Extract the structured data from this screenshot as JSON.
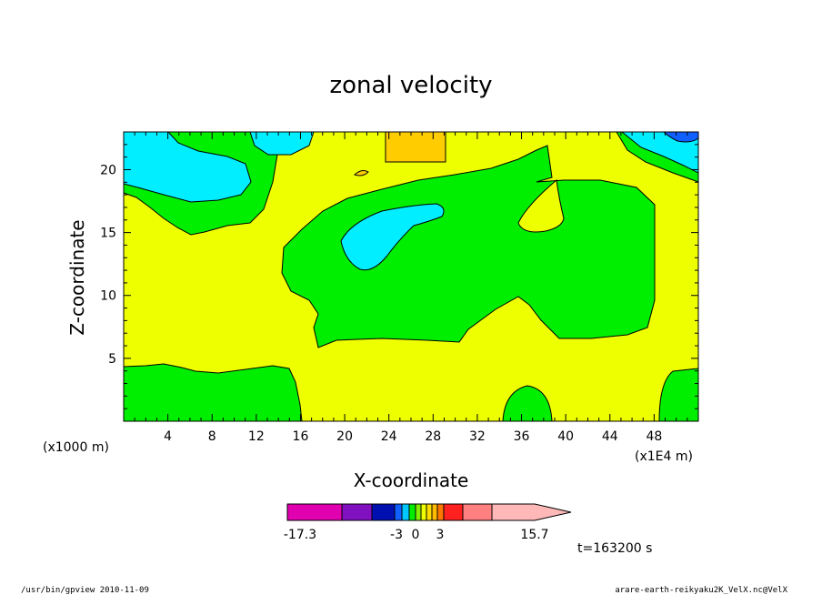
{
  "chart_data": {
    "type": "heatmap",
    "title": "zonal velocity",
    "xlabel": "X-coordinate",
    "ylabel": "Z-coordinate",
    "x_unit_left": "(x1000 m)",
    "x_unit_right": "(x1E4 m)",
    "xlim": [
      0,
      52
    ],
    "ylim": [
      0,
      23
    ],
    "x_ticks": [
      4,
      8,
      12,
      16,
      20,
      24,
      28,
      32,
      36,
      40,
      44,
      48
    ],
    "y_ticks": [
      5,
      10,
      15,
      20
    ],
    "colorbar": {
      "labels": [
        "-17.3",
        "-3",
        "0",
        "3",
        "15.7"
      ],
      "label_positions": [
        -17.3,
        -3,
        0,
        3,
        15.7
      ],
      "colors": [
        "#e000b0",
        "#8010c0",
        "#0010b0",
        "#1060ff",
        "#00c8ff",
        "#00ee00",
        "#88ee00",
        "#eeff00",
        "#ffdd00",
        "#ffbb00",
        "#ff7700",
        "#ff2020",
        "#ff8080",
        "#ffb8b8"
      ]
    },
    "time_label": "t=163200 s"
  },
  "footer": {
    "left": "/usr/bin/gpview  2010-11-09",
    "right": "arare-earth-reikyaku2K_VelX.nc@VelX"
  }
}
